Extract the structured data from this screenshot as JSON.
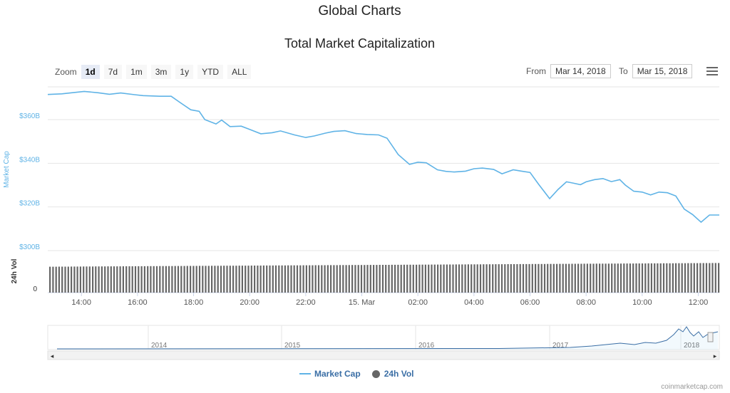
{
  "page": {
    "title": "Global Charts",
    "subtitle": "Total Market Capitalization",
    "credit": "coinmarketcap.com"
  },
  "toolbar": {
    "zoom_label": "Zoom",
    "zoom_buttons": [
      "1d",
      "7d",
      "1m",
      "3m",
      "1y",
      "YTD",
      "ALL"
    ],
    "active_zoom": "1d",
    "from_label": "From",
    "from_value": "Mar 14, 2018",
    "to_label": "To",
    "to_value": "Mar 15, 2018",
    "menu_icon": "hamburger-menu-icon"
  },
  "legend": {
    "market_cap": "Market Cap",
    "vol": "24h Vol"
  },
  "colors": {
    "line": "#5fb3e6",
    "bars": "#666666",
    "axis_text": "#5fb3e6"
  },
  "chart_data": {
    "type": "line",
    "title": "Total Market Capitalization",
    "ylabel": "Market Cap",
    "y2label": "24h Vol",
    "ylim": [
      300,
      375
    ],
    "yunit": "B USD",
    "yticks": [
      "$300B",
      "$320B",
      "$340B",
      "$360B"
    ],
    "vol_ticks": [
      "0"
    ],
    "xticks": [
      "14:00",
      "16:00",
      "18:00",
      "20:00",
      "22:00",
      "15. Mar",
      "02:00",
      "04:00",
      "06:00",
      "08:00",
      "10:00",
      "12:00"
    ],
    "x_start_hour": 12.8,
    "x_end_hour": 36.75,
    "series": [
      {
        "name": "Market Cap",
        "hours": [
          12.8,
          13.3,
          13.8,
          14.1,
          14.6,
          15.0,
          15.4,
          15.9,
          16.2,
          16.8,
          17.2,
          17.5,
          17.9,
          18.2,
          18.4,
          18.8,
          19.0,
          19.3,
          19.7,
          20.0,
          20.4,
          20.8,
          21.1,
          21.6,
          22.0,
          22.3,
          22.7,
          23.0,
          23.4,
          23.8,
          24.2,
          24.6,
          24.9,
          25.3,
          25.7,
          26.0,
          26.3,
          26.7,
          27.0,
          27.3,
          27.7,
          28.0,
          28.3,
          28.7,
          29.0,
          29.4,
          29.7,
          30.0,
          30.3,
          30.7,
          31.0,
          31.3,
          31.5,
          31.8,
          32.0,
          32.3,
          32.6,
          32.9,
          33.2,
          33.4,
          33.7,
          34.0,
          34.3,
          34.6,
          34.9,
          35.2,
          35.5,
          35.8,
          36.1,
          36.4,
          36.75
        ],
        "values": [
          371.5,
          371.8,
          372.5,
          372.9,
          372.3,
          371.6,
          372.2,
          371.4,
          371.0,
          370.7,
          370.7,
          368.0,
          364.5,
          363.8,
          360.0,
          358.0,
          359.8,
          356.8,
          357.0,
          355.5,
          353.5,
          354.0,
          354.8,
          353.0,
          351.8,
          352.5,
          353.8,
          354.6,
          354.9,
          353.6,
          353.2,
          353.0,
          351.5,
          344.0,
          339.5,
          340.5,
          340.2,
          337.0,
          336.3,
          336.0,
          336.4,
          337.5,
          337.8,
          337.2,
          335.2,
          337.0,
          336.4,
          335.8,
          330.5,
          323.8,
          328.0,
          331.5,
          331.0,
          330.2,
          331.5,
          332.5,
          333.0,
          331.6,
          332.5,
          330.0,
          327.2,
          326.8,
          325.5,
          326.8,
          326.5,
          325.0,
          319.0,
          316.5,
          313.0,
          316.3,
          316.3
        ]
      },
      {
        "name": "24h Vol",
        "note": "volume bars nearly constant, slightly rising",
        "relative_start": 0.7,
        "relative_end": 0.8
      }
    ],
    "navigator": {
      "year_labels": [
        "2014",
        "2015",
        "2016",
        "2017",
        "2018"
      ]
    },
    "grid": true,
    "legend_position": "bottom-center"
  }
}
